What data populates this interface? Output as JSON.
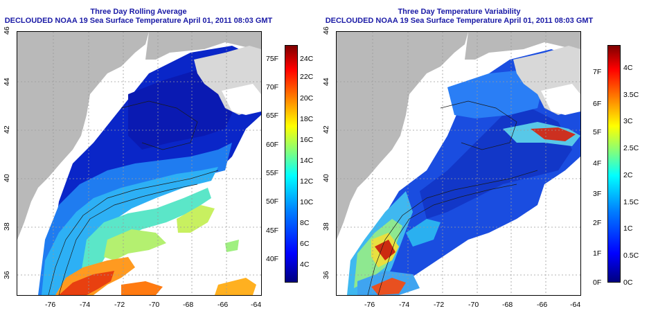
{
  "panels": [
    {
      "title_line1": "Three Day Rolling Average",
      "title_line2": "DECLOUDED NOAA 19 Sea Surface Temperature April 01, 2011 08:03 GMT",
      "x_ticks": [
        "-76",
        "-74",
        "-72",
        "-70",
        "-68",
        "-66",
        "-64"
      ],
      "y_ticks": [
        "36",
        "38",
        "40",
        "42",
        "44",
        "46"
      ],
      "colorbar": {
        "left_labels": [
          "75F",
          "70F",
          "65F",
          "60F",
          "55F",
          "50F",
          "45F",
          "40F"
        ],
        "right_labels": [
          "24C",
          "22C",
          "20C",
          "18C",
          "16C",
          "14C",
          "12C",
          "10C",
          "8C",
          "6C",
          "4C"
        ]
      }
    },
    {
      "title_line1": "Three Day Temperature Variability",
      "title_line2": "DECLOUDED NOAA 19 Sea Surface Temperature April 01, 2011 08:03 GMT",
      "x_ticks": [
        "-76",
        "-74",
        "-72",
        "-70",
        "-68",
        "-66",
        "-64"
      ],
      "y_ticks": [
        "36",
        "38",
        "40",
        "42",
        "44",
        "46"
      ],
      "colorbar": {
        "left_labels": [
          "7F",
          "6F",
          "5F",
          "4F",
          "3F",
          "2F",
          "1F",
          "0F"
        ],
        "right_labels": [
          "4C",
          "3.5C",
          "3C",
          "2.5C",
          "2C",
          "1.5C",
          "1C",
          "0.5C",
          "0C"
        ]
      }
    }
  ],
  "colors": {
    "land": "#b9b9b9",
    "ocean_no_data": "#ffffff",
    "title": "#1a1aa6",
    "colormap": [
      "#00007f",
      "#0000ff",
      "#007fff",
      "#00ffff",
      "#7fff7f",
      "#ffff00",
      "#ff7f00",
      "#ff0000",
      "#7f0000"
    ]
  }
}
